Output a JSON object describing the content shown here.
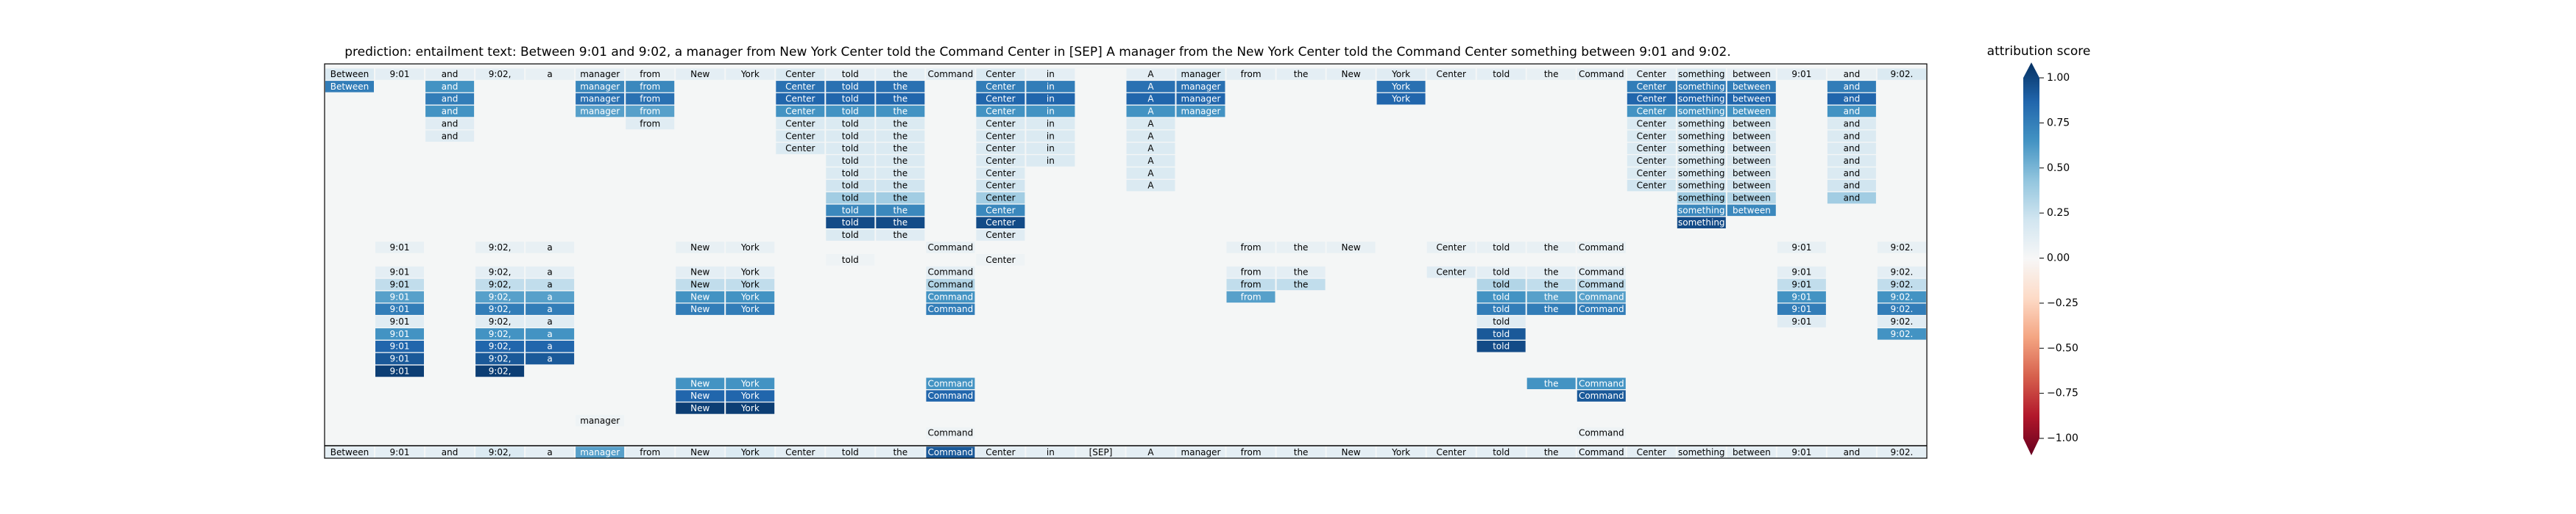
{
  "chart_data": {
    "type": "heatmap",
    "title": "prediction:  entailment     text:  Between 9:01 and 9:02, a manager from New York Center told the Command Center in [SEP] A manager from the New York Center told the Command Center something between 9:01 and 9:02.",
    "tokens": [
      "Between",
      "9:01",
      "and",
      "9:02,",
      "a",
      "manager",
      "from",
      "New",
      "York",
      "Center",
      "told",
      "the",
      "Command",
      "Center",
      "in",
      "[SEP]",
      "A",
      "manager",
      "from",
      "the",
      "New",
      "York",
      "Center",
      "told",
      "the",
      "Command",
      "Center",
      "something",
      "between",
      "9:01",
      "and",
      "9:02."
    ],
    "colorbar": {
      "title": "attribution score",
      "colormap": "RdBu",
      "range": [
        -1.0,
        1.0
      ],
      "ticks": [
        "1.00",
        "0.75",
        "0.50",
        "0.25",
        "0.00",
        "−0.25",
        "−0.50",
        "−0.75",
        "−1.00"
      ]
    },
    "rows": [
      {
        "row": 0,
        "cells": [
          [
            0,
            0.15
          ],
          [
            1,
            0.1
          ],
          [
            2,
            0.1
          ],
          [
            3,
            0.1
          ],
          [
            4,
            0.08
          ],
          [
            5,
            0.1
          ],
          [
            6,
            0.08
          ],
          [
            7,
            0.1
          ],
          [
            8,
            0.1
          ],
          [
            9,
            0.15
          ],
          [
            10,
            0.1
          ],
          [
            11,
            0.1
          ],
          [
            12,
            0.1
          ],
          [
            13,
            0.15
          ],
          [
            14,
            0.1
          ],
          [
            16,
            0.1
          ],
          [
            17,
            0.15
          ],
          [
            18,
            0.1
          ],
          [
            19,
            0.1
          ],
          [
            20,
            0.1
          ],
          [
            21,
            0.12
          ],
          [
            22,
            0.1
          ],
          [
            23,
            0.1
          ],
          [
            24,
            0.08
          ],
          [
            25,
            0.1
          ],
          [
            26,
            0.1
          ],
          [
            27,
            0.15
          ],
          [
            28,
            0.1
          ],
          [
            29,
            0.1
          ],
          [
            30,
            0.08
          ],
          [
            31,
            0.15
          ]
        ]
      },
      {
        "row": 1,
        "cells": [
          [
            0,
            0.7
          ],
          [
            2,
            0.6
          ],
          [
            5,
            0.65
          ],
          [
            6,
            0.65
          ],
          [
            9,
            0.75
          ],
          [
            10,
            0.75
          ],
          [
            11,
            0.75
          ],
          [
            13,
            0.7
          ],
          [
            14,
            0.7
          ],
          [
            16,
            0.75
          ],
          [
            17,
            0.75
          ],
          [
            21,
            0.75
          ],
          [
            26,
            0.7
          ],
          [
            27,
            0.7
          ],
          [
            28,
            0.7
          ],
          [
            30,
            0.7
          ]
        ]
      },
      {
        "row": 2,
        "cells": [
          [
            2,
            0.7
          ],
          [
            5,
            0.75
          ],
          [
            6,
            0.75
          ],
          [
            9,
            0.8
          ],
          [
            10,
            0.8
          ],
          [
            11,
            0.8
          ],
          [
            13,
            0.8
          ],
          [
            14,
            0.8
          ],
          [
            16,
            0.8
          ],
          [
            17,
            0.8
          ],
          [
            21,
            0.8
          ],
          [
            26,
            0.8
          ],
          [
            27,
            0.8
          ],
          [
            28,
            0.8
          ],
          [
            30,
            0.8
          ]
        ]
      },
      {
        "row": 3,
        "cells": [
          [
            2,
            0.6
          ],
          [
            5,
            0.55
          ],
          [
            6,
            0.55
          ],
          [
            9,
            0.6
          ],
          [
            10,
            0.6
          ],
          [
            11,
            0.6
          ],
          [
            13,
            0.6
          ],
          [
            14,
            0.6
          ],
          [
            16,
            0.6
          ],
          [
            17,
            0.6
          ],
          [
            26,
            0.6
          ],
          [
            27,
            0.6
          ],
          [
            28,
            0.6
          ],
          [
            30,
            0.6
          ]
        ]
      },
      {
        "row": 4,
        "cells": [
          [
            2,
            0.12
          ],
          [
            6,
            0.12
          ],
          [
            9,
            0.15
          ],
          [
            10,
            0.15
          ],
          [
            11,
            0.15
          ],
          [
            13,
            0.15
          ],
          [
            14,
            0.15
          ],
          [
            16,
            0.15
          ],
          [
            26,
            0.15
          ],
          [
            27,
            0.15
          ],
          [
            28,
            0.15
          ],
          [
            30,
            0.15
          ]
        ]
      },
      {
        "row": 5,
        "cells": [
          [
            2,
            0.12
          ],
          [
            9,
            0.15
          ],
          [
            10,
            0.15
          ],
          [
            11,
            0.15
          ],
          [
            13,
            0.15
          ],
          [
            14,
            0.15
          ],
          [
            16,
            0.15
          ],
          [
            26,
            0.15
          ],
          [
            27,
            0.15
          ],
          [
            28,
            0.15
          ],
          [
            30,
            0.15
          ]
        ]
      },
      {
        "row": 6,
        "cells": [
          [
            9,
            0.15
          ],
          [
            10,
            0.15
          ],
          [
            11,
            0.15
          ],
          [
            13,
            0.15
          ],
          [
            14,
            0.15
          ],
          [
            16,
            0.15
          ],
          [
            26,
            0.15
          ],
          [
            27,
            0.15
          ],
          [
            28,
            0.15
          ],
          [
            30,
            0.15
          ]
        ]
      },
      {
        "row": 7,
        "cells": [
          [
            10,
            0.15
          ],
          [
            11,
            0.15
          ],
          [
            13,
            0.15
          ],
          [
            14,
            0.15
          ],
          [
            16,
            0.15
          ],
          [
            26,
            0.15
          ],
          [
            27,
            0.15
          ],
          [
            28,
            0.15
          ],
          [
            30,
            0.15
          ]
        ]
      },
      {
        "row": 8,
        "cells": [
          [
            10,
            0.15
          ],
          [
            11,
            0.15
          ],
          [
            13,
            0.15
          ],
          [
            16,
            0.15
          ],
          [
            26,
            0.15
          ],
          [
            27,
            0.15
          ],
          [
            28,
            0.15
          ],
          [
            30,
            0.15
          ]
        ]
      },
      {
        "row": 9,
        "cells": [
          [
            10,
            0.2
          ],
          [
            11,
            0.2
          ],
          [
            13,
            0.2
          ],
          [
            16,
            0.15
          ],
          [
            26,
            0.2
          ],
          [
            27,
            0.2
          ],
          [
            28,
            0.2
          ],
          [
            30,
            0.2
          ]
        ]
      },
      {
        "row": 10,
        "cells": [
          [
            10,
            0.35
          ],
          [
            11,
            0.35
          ],
          [
            13,
            0.35
          ],
          [
            27,
            0.35
          ],
          [
            28,
            0.3
          ],
          [
            30,
            0.35
          ]
        ]
      },
      {
        "row": 11,
        "cells": [
          [
            10,
            0.65
          ],
          [
            11,
            0.65
          ],
          [
            13,
            0.65
          ],
          [
            27,
            0.65
          ],
          [
            28,
            0.65
          ]
        ]
      },
      {
        "row": 12,
        "cells": [
          [
            10,
            0.9
          ],
          [
            11,
            0.9
          ],
          [
            13,
            0.9
          ],
          [
            27,
            0.9
          ]
        ]
      },
      {
        "row": 13,
        "cells": [
          [
            10,
            0.15
          ],
          [
            11,
            0.12
          ],
          [
            13,
            0.12
          ]
        ]
      },
      {
        "row": 14,
        "cells": [
          [
            1,
            0.08
          ],
          [
            3,
            0.08
          ],
          [
            4,
            0.08
          ],
          [
            7,
            0.08
          ],
          [
            8,
            0.08
          ],
          [
            12,
            0.08
          ],
          [
            18,
            0.08
          ],
          [
            19,
            0.08
          ],
          [
            20,
            0.08
          ],
          [
            22,
            0.08
          ],
          [
            23,
            0.08
          ],
          [
            24,
            0.08
          ],
          [
            25,
            0.08
          ],
          [
            29,
            0.08
          ],
          [
            31,
            0.08
          ]
        ]
      },
      {
        "row": 15,
        "cells": [
          [
            10,
            0.05
          ],
          [
            13,
            0.05
          ]
        ]
      },
      {
        "row": 16,
        "cells": [
          [
            1,
            0.1
          ],
          [
            3,
            0.1
          ],
          [
            4,
            0.1
          ],
          [
            7,
            0.1
          ],
          [
            8,
            0.1
          ],
          [
            12,
            0.1
          ],
          [
            18,
            0.1
          ],
          [
            19,
            0.1
          ],
          [
            22,
            0.12
          ],
          [
            23,
            0.1
          ],
          [
            24,
            0.1
          ],
          [
            25,
            0.1
          ],
          [
            29,
            0.1
          ],
          [
            31,
            0.1
          ]
        ]
      },
      {
        "row": 17,
        "cells": [
          [
            1,
            0.25
          ],
          [
            3,
            0.25
          ],
          [
            4,
            0.25
          ],
          [
            7,
            0.25
          ],
          [
            8,
            0.25
          ],
          [
            12,
            0.3
          ],
          [
            18,
            0.25
          ],
          [
            19,
            0.25
          ],
          [
            23,
            0.3
          ],
          [
            24,
            0.25
          ],
          [
            25,
            0.25
          ],
          [
            29,
            0.25
          ],
          [
            31,
            0.25
          ]
        ]
      },
      {
        "row": 18,
        "cells": [
          [
            1,
            0.55
          ],
          [
            3,
            0.55
          ],
          [
            4,
            0.55
          ],
          [
            7,
            0.6
          ],
          [
            8,
            0.6
          ],
          [
            12,
            0.6
          ],
          [
            18,
            0.55
          ],
          [
            23,
            0.6
          ],
          [
            24,
            0.55
          ],
          [
            25,
            0.55
          ],
          [
            29,
            0.6
          ],
          [
            31,
            0.6
          ]
        ]
      },
      {
        "row": 19,
        "cells": [
          [
            1,
            0.7
          ],
          [
            3,
            0.7
          ],
          [
            4,
            0.7
          ],
          [
            7,
            0.7
          ],
          [
            8,
            0.7
          ],
          [
            12,
            0.7
          ],
          [
            23,
            0.7
          ],
          [
            24,
            0.7
          ],
          [
            25,
            0.7
          ],
          [
            29,
            0.7
          ],
          [
            31,
            0.7
          ]
        ]
      },
      {
        "row": 20,
        "cells": [
          [
            1,
            0.12
          ],
          [
            3,
            0.12
          ],
          [
            4,
            0.12
          ],
          [
            23,
            0.12
          ],
          [
            29,
            0.12
          ],
          [
            31,
            0.12
          ]
        ]
      },
      {
        "row": 21,
        "cells": [
          [
            1,
            0.6
          ],
          [
            3,
            0.6
          ],
          [
            4,
            0.6
          ],
          [
            23,
            0.85
          ],
          [
            31,
            0.6
          ]
        ]
      },
      {
        "row": 22,
        "cells": [
          [
            1,
            0.8
          ],
          [
            3,
            0.8
          ],
          [
            4,
            0.8
          ],
          [
            23,
            0.9
          ]
        ]
      },
      {
        "row": 23,
        "cells": [
          [
            1,
            0.85
          ],
          [
            3,
            0.85
          ],
          [
            4,
            0.85
          ]
        ]
      },
      {
        "row": 24,
        "cells": [
          [
            1,
            0.95
          ],
          [
            3,
            0.95
          ]
        ]
      },
      {
        "row": 25,
        "cells": [
          [
            7,
            0.6
          ],
          [
            8,
            0.6
          ],
          [
            12,
            0.6
          ],
          [
            24,
            0.6
          ],
          [
            25,
            0.6
          ]
        ]
      },
      {
        "row": 26,
        "cells": [
          [
            7,
            0.8
          ],
          [
            8,
            0.8
          ],
          [
            12,
            0.8
          ],
          [
            25,
            0.85
          ]
        ]
      },
      {
        "row": 27,
        "cells": [
          [
            7,
            0.95
          ],
          [
            8,
            0.95
          ]
        ]
      },
      {
        "row": 28,
        "cells": [
          [
            5,
            0.05
          ]
        ]
      },
      {
        "row": 29,
        "cells": [
          [
            12,
            0.05
          ],
          [
            25,
            0.05
          ]
        ]
      },
      {
        "row": 30,
        "cells": [
          [
            0,
            0.1
          ],
          [
            1,
            0.1
          ],
          [
            2,
            0.1
          ],
          [
            3,
            0.15
          ],
          [
            4,
            0.1
          ],
          [
            5,
            0.55
          ],
          [
            6,
            0.1
          ],
          [
            7,
            0.1
          ],
          [
            8,
            0.15
          ],
          [
            9,
            0.1
          ],
          [
            10,
            0.1
          ],
          [
            11,
            0.1
          ],
          [
            12,
            0.85
          ],
          [
            13,
            0.1
          ],
          [
            14,
            0.1
          ],
          [
            15,
            0.08
          ],
          [
            16,
            0.1
          ],
          [
            17,
            0.1
          ],
          [
            18,
            0.1
          ],
          [
            19,
            0.1
          ],
          [
            20,
            0.1
          ],
          [
            21,
            0.1
          ],
          [
            22,
            0.1
          ],
          [
            23,
            0.1
          ],
          [
            24,
            0.1
          ],
          [
            25,
            0.1
          ],
          [
            26,
            0.1
          ],
          [
            27,
            0.1
          ],
          [
            28,
            0.1
          ],
          [
            29,
            0.1
          ],
          [
            30,
            0.1
          ],
          [
            31,
            0.1
          ]
        ]
      }
    ]
  }
}
